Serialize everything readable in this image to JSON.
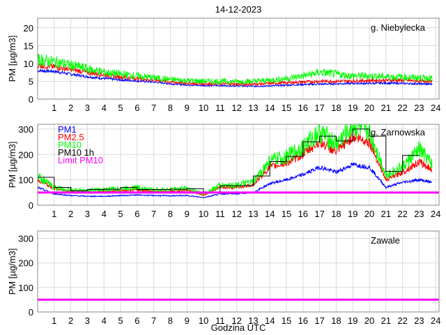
{
  "title": "14-12-2023",
  "xlabel": "Godzina UTC",
  "chart_data": [
    {
      "type": "line",
      "station": "g. Niebylecka",
      "ylabel": "PM [µg/m3]",
      "ylim": [
        0,
        22.7
      ],
      "yticks": [
        0,
        5,
        10,
        15,
        20
      ],
      "xlim": [
        0,
        24.2
      ],
      "xticks": [
        1,
        2,
        3,
        4,
        5,
        6,
        7,
        8,
        9,
        10,
        11,
        12,
        13,
        14,
        15,
        16,
        17,
        18,
        19,
        20,
        21,
        22,
        23,
        24
      ],
      "x": [
        0,
        1,
        2,
        3,
        4,
        5,
        6,
        7,
        8,
        9,
        10,
        11,
        12,
        13,
        14,
        15,
        16,
        17,
        18,
        19,
        20,
        21,
        22,
        23,
        23.8
      ],
      "series": [
        {
          "name": "PM1",
          "color": "#0000ff",
          "values": [
            8,
            7.8,
            7,
            6.3,
            5.8,
            5.4,
            5.1,
            4.8,
            4.3,
            4,
            3.8,
            3.8,
            3.7,
            3.6,
            3.7,
            3.9,
            4.1,
            4.2,
            4.3,
            4.4,
            4.4,
            4.5,
            4.4,
            4.3,
            4.2
          ]
        },
        {
          "name": "PM2.5",
          "color": "#ff0000",
          "values": [
            9.5,
            9,
            8.3,
            7.5,
            6.8,
            6.2,
            5.8,
            5.4,
            4.8,
            4.5,
            4.3,
            4.3,
            4.2,
            4.2,
            4.4,
            4.6,
            4.8,
            5,
            5,
            5.1,
            5.2,
            5.3,
            5.3,
            5.1,
            5
          ]
        },
        {
          "name": "PM10",
          "color": "#00ff00",
          "values": [
            11,
            10.5,
            9.5,
            8.5,
            7.5,
            7,
            6.5,
            6,
            5.5,
            5.2,
            5,
            5,
            4.9,
            5,
            5.3,
            5.8,
            6.5,
            7.5,
            7,
            6.5,
            6.5,
            6.3,
            6.2,
            6,
            5.8
          ]
        }
      ]
    },
    {
      "type": "line",
      "station": "g. Zarnowska",
      "ylabel": "PM [µg/m3]",
      "ylim": [
        0,
        319
      ],
      "yticks": [
        0,
        100,
        200,
        300
      ],
      "xlim": [
        0,
        24.2
      ],
      "xticks": [
        1,
        2,
        3,
        4,
        5,
        6,
        7,
        8,
        9,
        10,
        11,
        12,
        13,
        14,
        15,
        16,
        17,
        18,
        19,
        20,
        21,
        22,
        23,
        24
      ],
      "x": [
        0,
        1,
        2,
        3,
        4,
        5,
        6,
        7,
        8,
        9,
        10,
        11,
        12,
        13,
        14,
        15,
        16,
        17,
        18,
        19,
        20,
        21,
        22,
        23,
        23.8
      ],
      "series": [
        {
          "name": "PM1",
          "color": "#0000ff",
          "values": [
            70,
            45,
            38,
            35,
            35,
            38,
            40,
            38,
            37,
            38,
            30,
            45,
            45,
            50,
            85,
            100,
            120,
            150,
            130,
            160,
            150,
            70,
            90,
            100,
            90
          ]
        },
        {
          "name": "PM2.5",
          "color": "#ff0000",
          "values": [
            100,
            65,
            55,
            52,
            55,
            58,
            60,
            55,
            55,
            60,
            40,
            70,
            70,
            80,
            150,
            165,
            200,
            250,
            210,
            270,
            250,
            100,
            130,
            170,
            140
          ]
        },
        {
          "name": "PM10",
          "color": "#00ff00",
          "values": [
            115,
            70,
            60,
            57,
            62,
            65,
            70,
            60,
            62,
            68,
            45,
            78,
            80,
            90,
            175,
            190,
            230,
            290,
            240,
            310,
            290,
            120,
            150,
            220,
            160
          ]
        }
      ],
      "pm10_1h": {
        "name": "PM10 1h",
        "color": "#000000",
        "values": [
          110,
          70,
          57,
          62,
          63,
          70,
          62,
          62,
          63,
          65,
          52,
          77,
          77,
          115,
          172,
          192,
          250,
          272,
          253,
          300,
          272,
          133,
          196
        ]
      },
      "limit": {
        "name": "Limit PM10",
        "color": "#ff00ff",
        "value": 50
      },
      "legend": [
        "PM1",
        "PM2.5",
        "PM10",
        "PM10 1h",
        "Limit PM10"
      ],
      "legend_position": "top-left"
    },
    {
      "type": "line",
      "station": "Zawale",
      "ylabel": "PM [µg/m3]",
      "ylim": [
        0,
        330
      ],
      "yticks": [
        0,
        100,
        200,
        300
      ],
      "xlim": [
        0,
        24.2
      ],
      "xticks": [
        1,
        2,
        3,
        4,
        5,
        6,
        7,
        8,
        9,
        10,
        11,
        12,
        13,
        14,
        15,
        16,
        17,
        18,
        19,
        20,
        21,
        22,
        23,
        24
      ],
      "x": [],
      "series": [],
      "limit": {
        "name": "Limit PM10",
        "color": "#ff00ff",
        "value": 50
      }
    }
  ]
}
